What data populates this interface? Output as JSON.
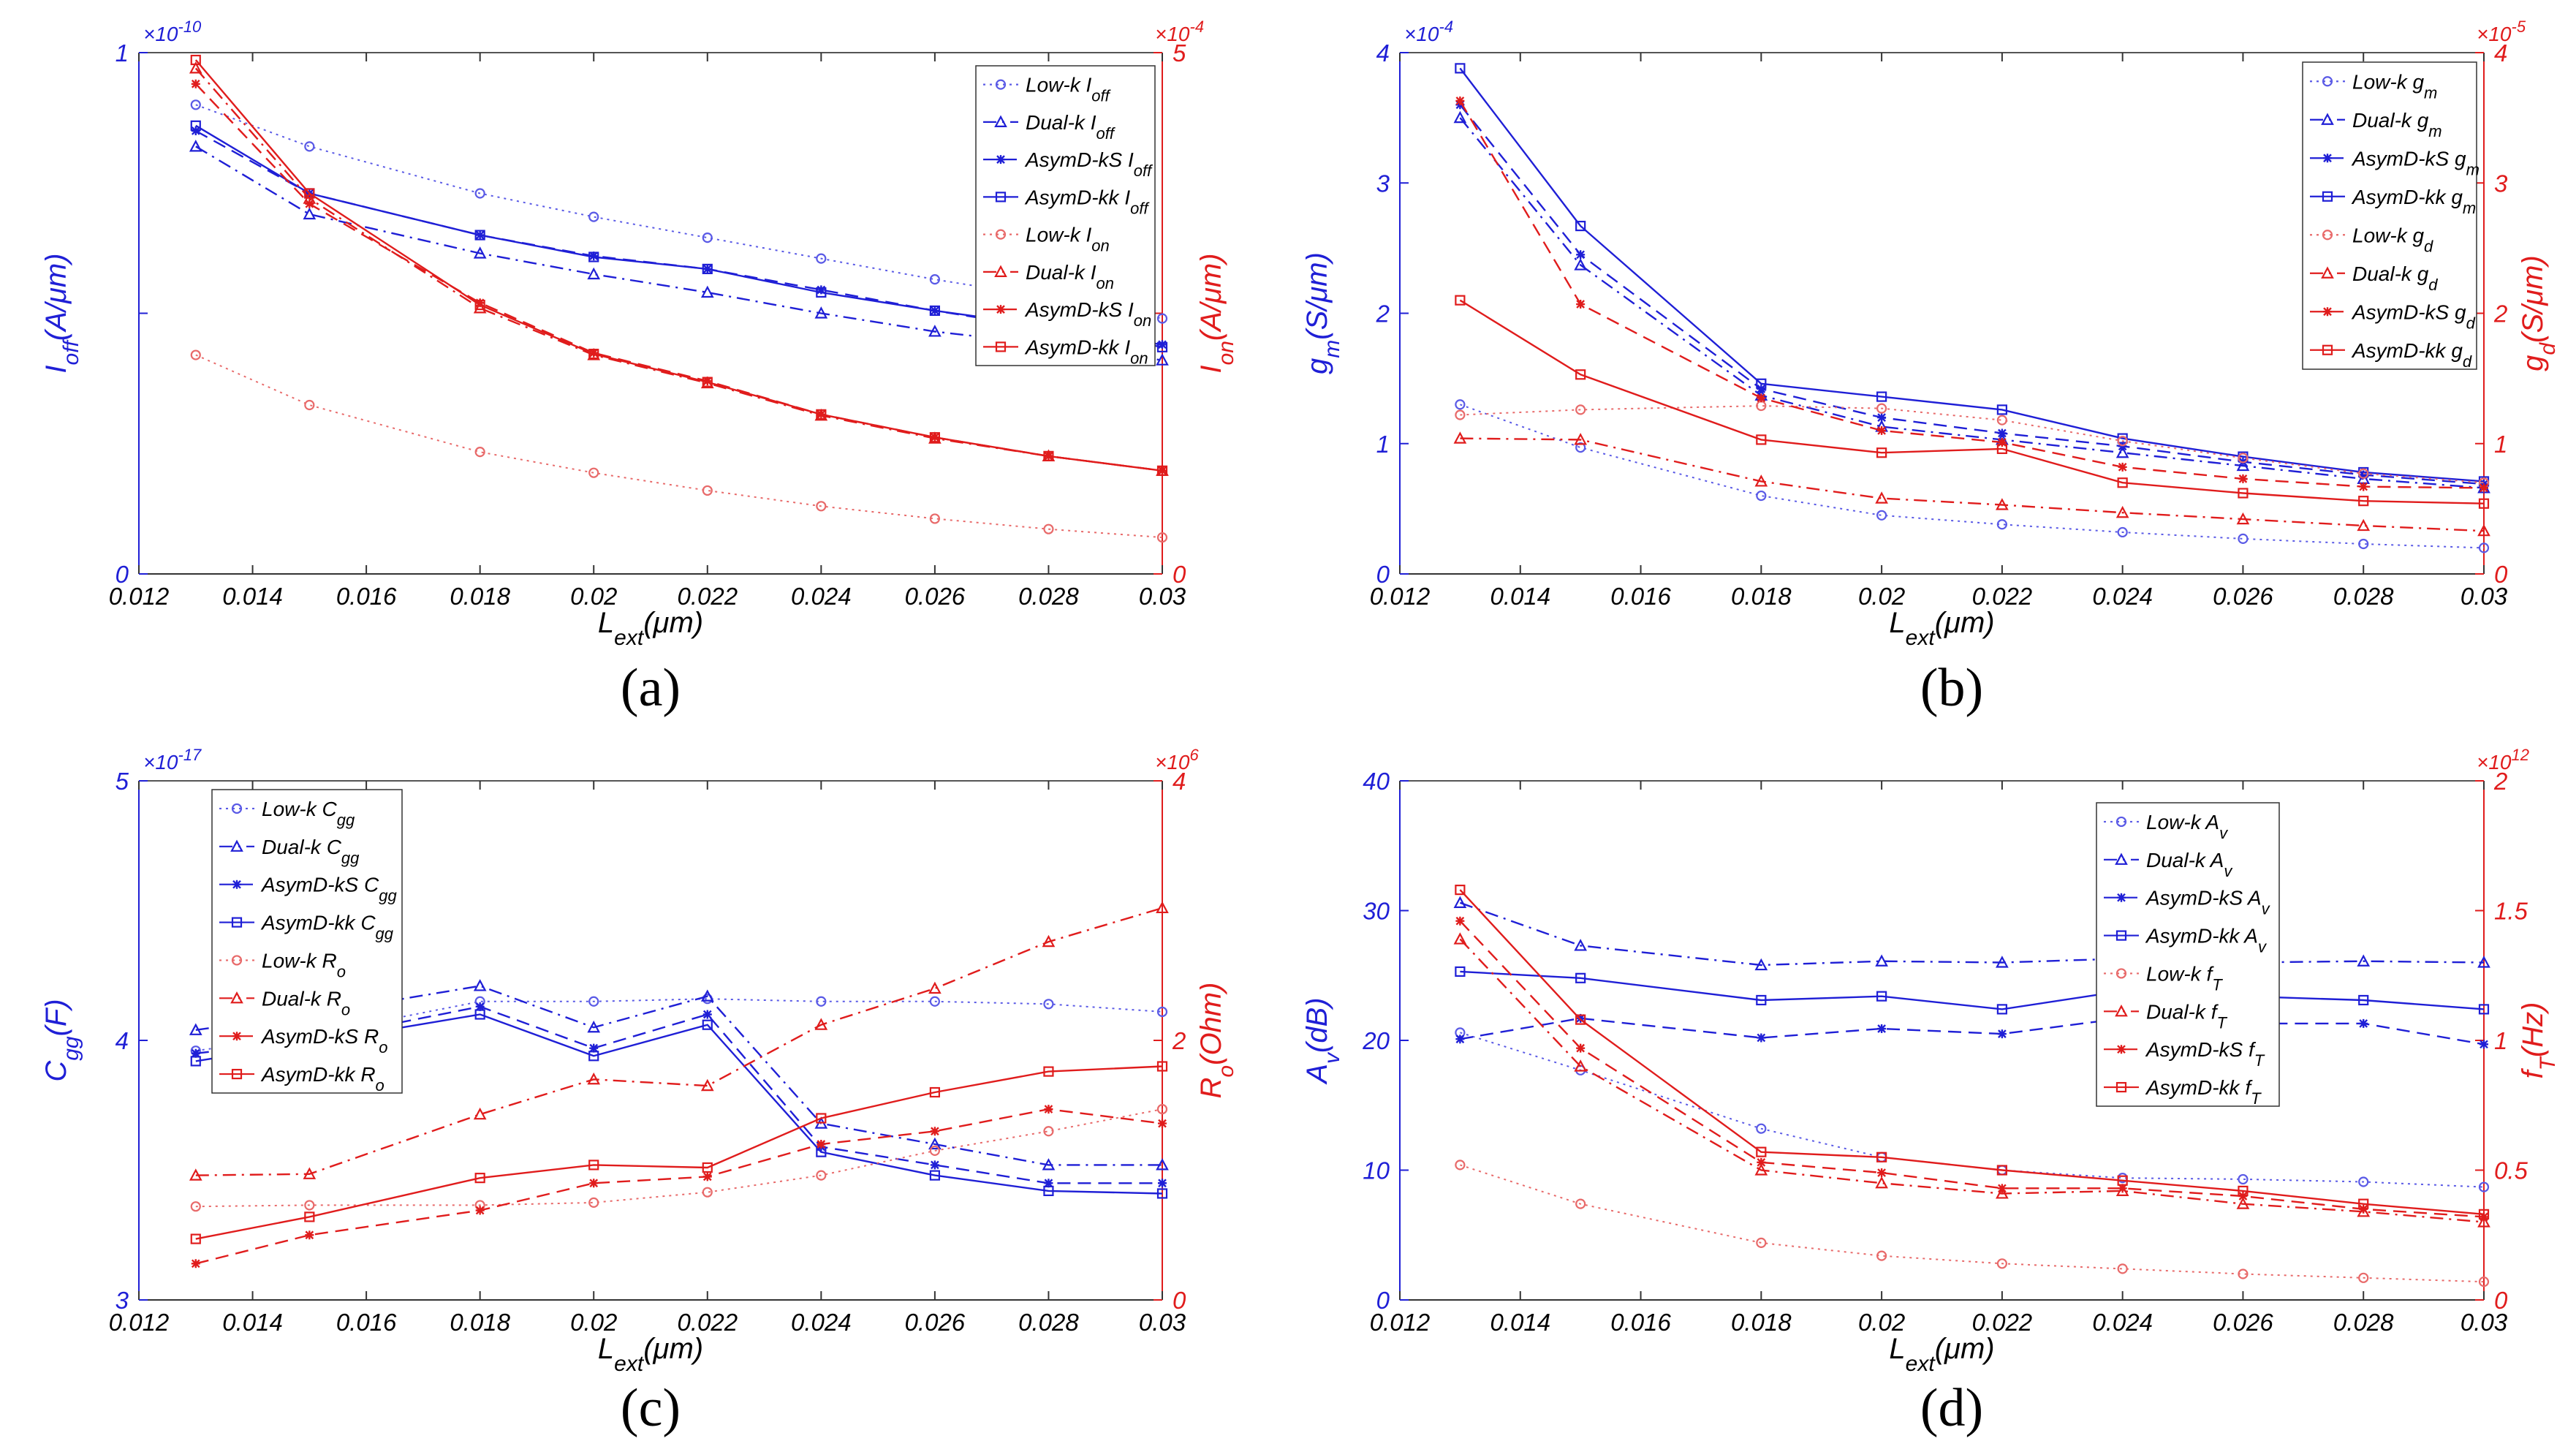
{
  "colors": {
    "blue": "#1f1fd6",
    "red": "#e01c1c",
    "blue_light": "#5a5ae6",
    "red_light": "#e86a6a"
  },
  "chart_data": [
    {
      "type": "line",
      "panel": "(a)",
      "x": [
        0.013,
        0.015,
        0.018,
        0.02,
        0.022,
        0.024,
        0.026,
        0.028,
        0.03
      ],
      "xlabel": {
        "main": "L",
        "sub": "ext",
        "rest": "(μm)"
      },
      "xlim": [
        0.012,
        0.03
      ],
      "xticks": [
        "0.012",
        "0.014",
        "0.016",
        "0.018",
        "0.02",
        "0.022",
        "0.024",
        "0.026",
        "0.028",
        "0.03"
      ],
      "y_left": {
        "label": {
          "main": "I",
          "sub": "off",
          "rest": "(A/μm)"
        },
        "lim": [
          0,
          1
        ],
        "ticks": [
          "0",
          "",
          "1"
        ],
        "exponent": "×10",
        "exponent_pow": "-10"
      },
      "y_right": {
        "label": {
          "main": "I",
          "sub": "on",
          "rest": "(A/μm)"
        },
        "lim": [
          0,
          5
        ],
        "ticks": [
          "0",
          "",
          "5"
        ],
        "exponent": "×10",
        "exponent_pow": "-4"
      },
      "legend_position": "top-right",
      "series": [
        {
          "name": "Low-k",
          "sub": "off",
          "axis": "left",
          "style": "dotted",
          "marker": "circle",
          "values": [
            0.9,
            0.82,
            0.73,
            0.685,
            0.645,
            0.605,
            0.565,
            0.53,
            0.49
          ]
        },
        {
          "name": "Dual-k",
          "sub": "off",
          "axis": "left",
          "style": "dashdot",
          "marker": "triangle",
          "values": [
            0.82,
            0.69,
            0.615,
            0.575,
            0.54,
            0.5,
            0.465,
            0.44,
            0.41
          ]
        },
        {
          "name": "AsymD-kS",
          "sub": "off",
          "axis": "left",
          "style": "dashed",
          "marker": "star",
          "values": [
            0.85,
            0.73,
            0.65,
            0.61,
            0.585,
            0.545,
            0.505,
            0.47,
            0.44
          ]
        },
        {
          "name": "AsymD-kk",
          "sub": "off",
          "axis": "left",
          "style": "solid",
          "marker": "square",
          "values": [
            0.86,
            0.73,
            0.65,
            0.608,
            0.585,
            0.54,
            0.505,
            0.475,
            0.435
          ]
        },
        {
          "name": "Low-k",
          "sub": "on",
          "axis": "right",
          "style": "dotted",
          "marker": "circle",
          "values": [
            2.1,
            1.62,
            1.17,
            0.97,
            0.8,
            0.65,
            0.53,
            0.43,
            0.35
          ]
        },
        {
          "name": "Dual-k",
          "sub": "on",
          "axis": "right",
          "style": "dashdot",
          "marker": "triangle",
          "values": [
            4.85,
            3.6,
            2.55,
            2.1,
            1.83,
            1.52,
            1.3,
            1.13,
            0.99
          ]
        },
        {
          "name": "AsymD-kS",
          "sub": "on",
          "axis": "right",
          "style": "dashed",
          "marker": "star",
          "values": [
            4.7,
            3.55,
            2.6,
            2.12,
            1.85,
            1.53,
            1.31,
            1.13,
            0.99
          ]
        },
        {
          "name": "AsymD-kk",
          "sub": "on",
          "axis": "right",
          "style": "solid",
          "marker": "square",
          "values": [
            4.93,
            3.65,
            2.58,
            2.11,
            1.84,
            1.53,
            1.31,
            1.13,
            0.99
          ]
        }
      ]
    },
    {
      "type": "line",
      "panel": "(b)",
      "x": [
        0.013,
        0.015,
        0.018,
        0.02,
        0.022,
        0.024,
        0.026,
        0.028,
        0.03
      ],
      "xlabel": {
        "main": "L",
        "sub": "ext",
        "rest": "(μm)"
      },
      "xlim": [
        0.012,
        0.03
      ],
      "xticks": [
        "0.012",
        "0.014",
        "0.016",
        "0.018",
        "0.02",
        "0.022",
        "0.024",
        "0.026",
        "0.028",
        "0.03"
      ],
      "y_left": {
        "label": {
          "main": "g",
          "sub": "m",
          "rest": "(S/μm)"
        },
        "lim": [
          0,
          4
        ],
        "ticks": [
          "0",
          "1",
          "2",
          "3",
          "4"
        ],
        "exponent": "×10",
        "exponent_pow": "-4"
      },
      "y_right": {
        "label": {
          "main": "g",
          "sub": "d",
          "rest": "(S/μm)"
        },
        "lim": [
          0,
          4
        ],
        "ticks": [
          "0",
          "1",
          "2",
          "3",
          "4"
        ],
        "exponent": "×10",
        "exponent_pow": "-5"
      },
      "legend_position": "top-right",
      "series": [
        {
          "name": "Low-k",
          "sub": "m",
          "axis": "left",
          "style": "dotted",
          "marker": "circle",
          "values": [
            1.3,
            0.97,
            0.6,
            0.45,
            0.38,
            0.32,
            0.27,
            0.23,
            0.2
          ]
        },
        {
          "name": "Dual-k",
          "sub": "m",
          "axis": "left",
          "style": "dashdot",
          "marker": "triangle",
          "values": [
            3.5,
            2.37,
            1.37,
            1.13,
            1.03,
            0.93,
            0.83,
            0.73,
            0.66
          ]
        },
        {
          "name": "AsymD-kS",
          "sub": "m",
          "axis": "left",
          "style": "dashed",
          "marker": "star",
          "values": [
            3.6,
            2.45,
            1.42,
            1.2,
            1.08,
            0.98,
            0.86,
            0.76,
            0.69
          ]
        },
        {
          "name": "AsymD-kk",
          "sub": "m",
          "axis": "left",
          "style": "solid",
          "marker": "square",
          "values": [
            3.88,
            2.67,
            1.46,
            1.36,
            1.26,
            1.04,
            0.9,
            0.78,
            0.71
          ]
        },
        {
          "name": "Low-k",
          "sub": "d",
          "axis": "right",
          "style": "dotted",
          "marker": "circle",
          "values": [
            1.22,
            1.26,
            1.29,
            1.27,
            1.18,
            1.02,
            0.89,
            0.77,
            0.7
          ]
        },
        {
          "name": "Dual-k",
          "sub": "d",
          "axis": "right",
          "style": "dashdot",
          "marker": "triangle",
          "values": [
            1.04,
            1.03,
            0.71,
            0.58,
            0.53,
            0.47,
            0.42,
            0.37,
            0.33
          ]
        },
        {
          "name": "AsymD-kS",
          "sub": "d",
          "axis": "right",
          "style": "dashed",
          "marker": "star",
          "values": [
            3.63,
            2.07,
            1.35,
            1.1,
            1.01,
            0.82,
            0.73,
            0.67,
            0.66
          ]
        },
        {
          "name": "AsymD-kk",
          "sub": "d",
          "axis": "right",
          "style": "solid",
          "marker": "square",
          "values": [
            2.1,
            1.53,
            1.03,
            0.93,
            0.96,
            0.7,
            0.62,
            0.56,
            0.54
          ]
        }
      ]
    },
    {
      "type": "line",
      "panel": "(c)",
      "x": [
        0.013,
        0.015,
        0.018,
        0.02,
        0.022,
        0.024,
        0.026,
        0.028,
        0.03
      ],
      "xlabel": {
        "main": "L",
        "sub": "ext",
        "rest": "(μm)"
      },
      "xlim": [
        0.012,
        0.03
      ],
      "xticks": [
        "0.012",
        "0.014",
        "0.016",
        "0.018",
        "0.02",
        "0.022",
        "0.024",
        "0.026",
        "0.028",
        "0.03"
      ],
      "y_left": {
        "label": {
          "main": "C",
          "sub": "gg",
          "rest": "(F)"
        },
        "lim": [
          3,
          5
        ],
        "ticks": [
          "3",
          "4",
          "5"
        ],
        "exponent": "×10",
        "exponent_pow": "-17"
      },
      "y_right": {
        "label": {
          "main": "R",
          "sub": "o",
          "rest": "(Ohm)"
        },
        "lim": [
          0,
          4
        ],
        "ticks": [
          "0",
          "2",
          "4"
        ],
        "exponent": "×10",
        "exponent_pow": "6"
      },
      "legend_position": "top-left",
      "series": [
        {
          "name": "Low-k",
          "sub": "gg",
          "axis": "left",
          "style": "dotted",
          "marker": "circle",
          "values": [
            3.96,
            4.02,
            4.15,
            4.15,
            4.16,
            4.15,
            4.15,
            4.14,
            4.11
          ]
        },
        {
          "name": "Dual-k",
          "sub": "gg",
          "axis": "left",
          "style": "dashdot",
          "marker": "triangle",
          "values": [
            4.04,
            4.1,
            4.21,
            4.05,
            4.17,
            3.68,
            3.6,
            3.52,
            3.52
          ]
        },
        {
          "name": "AsymD-kS",
          "sub": "gg",
          "axis": "left",
          "style": "dashed",
          "marker": "star",
          "values": [
            3.95,
            4.0,
            4.13,
            3.97,
            4.1,
            3.59,
            3.52,
            3.45,
            3.45
          ]
        },
        {
          "name": "AsymD-kk",
          "sub": "gg",
          "axis": "left",
          "style": "solid",
          "marker": "square",
          "values": [
            3.92,
            3.99,
            4.1,
            3.94,
            4.06,
            3.57,
            3.48,
            3.42,
            3.41
          ]
        },
        {
          "name": "Low-k",
          "sub": "o",
          "axis": "right",
          "style": "dotted",
          "marker": "circle",
          "values": [
            0.72,
            0.73,
            0.73,
            0.75,
            0.83,
            0.96,
            1.15,
            1.3,
            1.47
          ]
        },
        {
          "name": "Dual-k",
          "sub": "o",
          "axis": "right",
          "style": "dashdot",
          "marker": "triangle",
          "values": [
            0.96,
            0.97,
            1.43,
            1.7,
            1.65,
            2.12,
            2.4,
            2.76,
            3.02
          ]
        },
        {
          "name": "AsymD-kS",
          "sub": "o",
          "axis": "right",
          "style": "dashed",
          "marker": "star",
          "values": [
            0.28,
            0.5,
            0.69,
            0.9,
            0.95,
            1.2,
            1.3,
            1.47,
            1.36
          ]
        },
        {
          "name": "AsymD-kk",
          "sub": "o",
          "axis": "right",
          "style": "solid",
          "marker": "square",
          "values": [
            0.47,
            0.64,
            0.94,
            1.04,
            1.02,
            1.4,
            1.6,
            1.76,
            1.8
          ]
        }
      ]
    },
    {
      "type": "line",
      "panel": "(d)",
      "x": [
        0.013,
        0.015,
        0.018,
        0.02,
        0.022,
        0.024,
        0.026,
        0.028,
        0.03
      ],
      "xlabel": {
        "main": "L",
        "sub": "ext",
        "rest": "(μm)"
      },
      "xlim": [
        0.012,
        0.03
      ],
      "xticks": [
        "0.012",
        "0.014",
        "0.016",
        "0.018",
        "0.02",
        "0.022",
        "0.024",
        "0.026",
        "0.028",
        "0.03"
      ],
      "y_left": {
        "label": {
          "main": "A",
          "sub": "v",
          "rest": "(dB)"
        },
        "lim": [
          0,
          40
        ],
        "ticks": [
          "0",
          "10",
          "20",
          "30",
          "40"
        ],
        "exponent": "",
        "exponent_pow": ""
      },
      "y_right": {
        "label": {
          "main": "f",
          "sub": "T",
          "rest": "(Hz)"
        },
        "lim": [
          0,
          2
        ],
        "ticks": [
          "0",
          "0.5",
          "1",
          "1.5",
          "2"
        ],
        "exponent": "×10",
        "exponent_pow": "12"
      },
      "legend_position": "top-right",
      "series": [
        {
          "name": "Low-k",
          "sub": "v",
          "axis": "left",
          "style": "dotted",
          "marker": "circle",
          "values": [
            20.6,
            17.7,
            13.2,
            11.0,
            10.0,
            9.4,
            9.3,
            9.1,
            8.7
          ]
        },
        {
          "name": "Dual-k",
          "sub": "v",
          "axis": "left",
          "style": "dashdot",
          "marker": "triangle",
          "values": [
            30.6,
            27.3,
            25.8,
            26.1,
            26.0,
            26.3,
            26.0,
            26.1,
            26.0
          ]
        },
        {
          "name": "AsymD-kS",
          "sub": "v",
          "axis": "left",
          "style": "dashed",
          "marker": "star",
          "values": [
            20.1,
            21.7,
            20.2,
            20.9,
            20.5,
            21.7,
            21.3,
            21.3,
            19.7
          ]
        },
        {
          "name": "AsymD-kk",
          "sub": "v",
          "axis": "left",
          "style": "solid",
          "marker": "square",
          "values": [
            25.3,
            24.8,
            23.1,
            23.4,
            22.4,
            23.8,
            23.4,
            23.1,
            22.4
          ]
        },
        {
          "name": "Low-k",
          "sub": "T",
          "axis": "right",
          "style": "dotted",
          "marker": "circle",
          "values": [
            0.52,
            0.37,
            0.22,
            0.17,
            0.14,
            0.12,
            0.1,
            0.085,
            0.07
          ]
        },
        {
          "name": "Dual-k",
          "sub": "T",
          "axis": "right",
          "style": "dashdot",
          "marker": "triangle",
          "values": [
            1.39,
            0.9,
            0.5,
            0.45,
            0.41,
            0.42,
            0.37,
            0.34,
            0.3
          ]
        },
        {
          "name": "AsymD-kS",
          "sub": "T",
          "axis": "right",
          "style": "dashed",
          "marker": "star",
          "values": [
            1.46,
            0.97,
            0.53,
            0.49,
            0.43,
            0.43,
            0.4,
            0.35,
            0.32
          ]
        },
        {
          "name": "AsymD-kk",
          "sub": "T",
          "axis": "right",
          "style": "solid",
          "marker": "square",
          "values": [
            1.58,
            1.08,
            0.57,
            0.55,
            0.5,
            0.46,
            0.42,
            0.37,
            0.33
          ]
        }
      ]
    }
  ]
}
